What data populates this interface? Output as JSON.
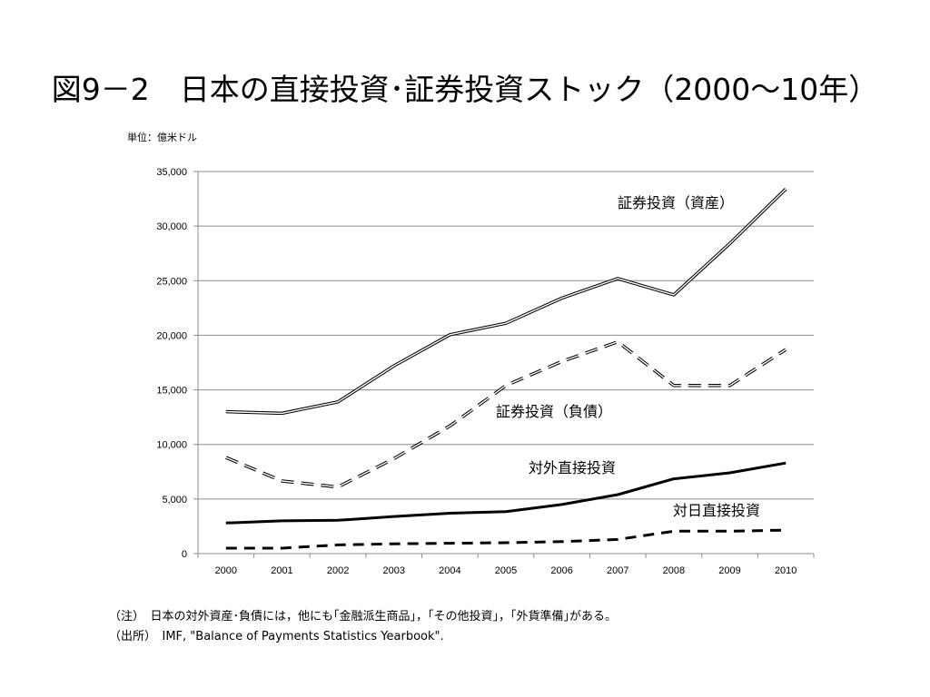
{
  "title": "図9－2　日本の直接投資･証券投資ストック（2000～10年）",
  "unit_label": "単位：億米ドル",
  "footnotes": {
    "note": "（注）　日本の対外資産･負債には，他にも｢金融派生商品｣，｢その他投資｣，｢外貨準備｣がある。",
    "source": "（出所）　IMF, \"Balance of Payments Statistics Yearbook\"."
  },
  "chart_data": {
    "type": "line",
    "x": [
      "2000",
      "2001",
      "2002",
      "2003",
      "2004",
      "2005",
      "2006",
      "2007",
      "2008",
      "2009",
      "2010"
    ],
    "ylim": [
      0,
      35000
    ],
    "yticks": [
      0,
      5000,
      10000,
      15000,
      20000,
      25000,
      30000,
      35000
    ],
    "ytick_labels": [
      "0",
      "5,000",
      "10,000",
      "15,000",
      "20,000",
      "25,000",
      "30,000",
      "35,000"
    ],
    "grid": true,
    "series": [
      {
        "name": "証券投資（資産）",
        "style": "double",
        "values": [
          13000,
          12850,
          13900,
          17200,
          20050,
          21100,
          23400,
          25200,
          23700,
          28400,
          33400
        ]
      },
      {
        "name": "証券投資（負債）",
        "style": "double-dashed",
        "values": [
          8800,
          6650,
          6100,
          8700,
          11700,
          15400,
          17600,
          19400,
          15400,
          15400,
          18700
        ]
      },
      {
        "name": "対外直接投資",
        "style": "solid",
        "values": [
          2800,
          3000,
          3050,
          3400,
          3700,
          3850,
          4500,
          5400,
          6850,
          7400,
          8300
        ]
      },
      {
        "name": "対日直接投資",
        "style": "dashed",
        "values": [
          500,
          500,
          800,
          900,
          950,
          1000,
          1100,
          1300,
          2050,
          2050,
          2150
        ]
      }
    ]
  }
}
